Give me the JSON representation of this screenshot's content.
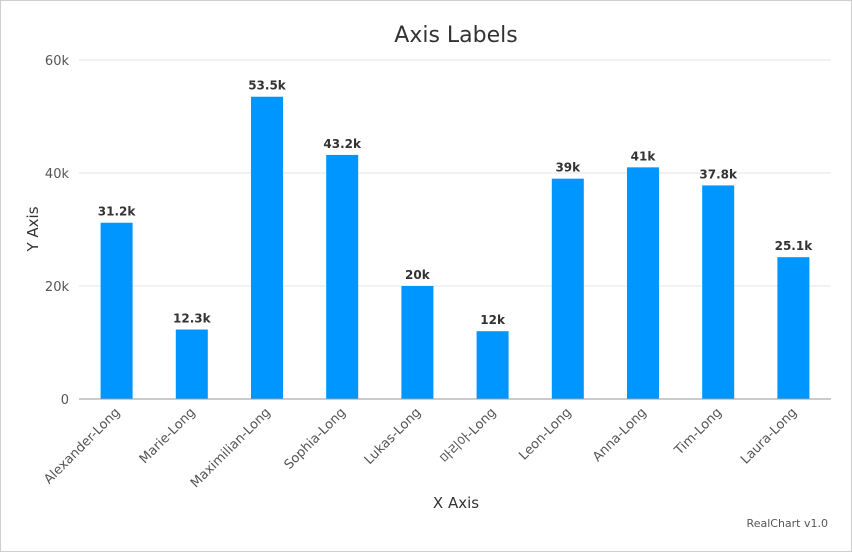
{
  "chart_data": {
    "type": "bar",
    "title": "Axis Labels",
    "xlabel": "X Axis",
    "ylabel": "Y Axis",
    "categories": [
      "Alexander-Long",
      "Marie-Long",
      "Maximilian-Long",
      "Sophia-Long",
      "Lukas-Long",
      "마리아-Long",
      "Leon-Long",
      "Anna-Long",
      "Tim-Long",
      "Laura-Long"
    ],
    "values": [
      31200,
      12300,
      53500,
      43200,
      20000,
      12000,
      39000,
      41000,
      37800,
      25100
    ],
    "value_labels": [
      "31.2k",
      "12.3k",
      "53.5k",
      "43.2k",
      "20k",
      "12k",
      "39k",
      "41k",
      "37.8k",
      "25.1k"
    ],
    "ylim": [
      0,
      60000
    ],
    "yticks": [
      0,
      20000,
      40000,
      60000
    ],
    "ytick_labels": [
      "0",
      "20k",
      "40k",
      "60k"
    ],
    "grid": true,
    "bar_color": "#0096ff",
    "credit": "RealChart v1.0"
  }
}
